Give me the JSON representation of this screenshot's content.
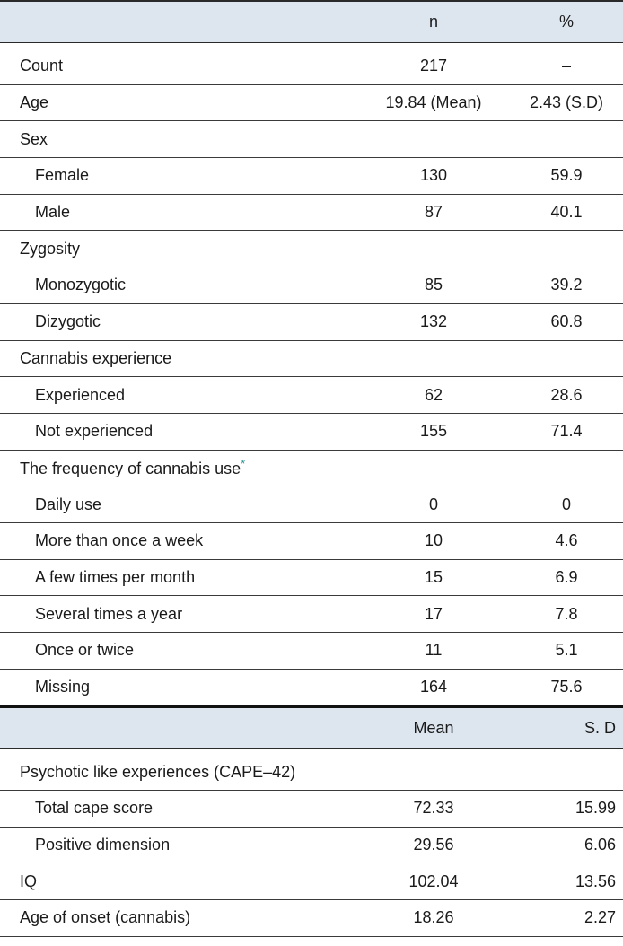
{
  "header1": {
    "col_n": "n",
    "col_pct": "%"
  },
  "rows1": [
    {
      "label": "Count",
      "n": "217",
      "pct": "–",
      "indent": false
    },
    {
      "label": "Age",
      "n": "19.84 (Mean)",
      "pct": "2.43 (S.D)",
      "indent": false
    },
    {
      "label": "Sex",
      "n": "",
      "pct": "",
      "indent": false
    },
    {
      "label": "Female",
      "n": "130",
      "pct": "59.9",
      "indent": true
    },
    {
      "label": "Male",
      "n": "87",
      "pct": "40.1",
      "indent": true
    },
    {
      "label": "Zygosity",
      "n": "",
      "pct": "",
      "indent": false
    },
    {
      "label": "Monozygotic",
      "n": "85",
      "pct": "39.2",
      "indent": true
    },
    {
      "label": "Dizygotic",
      "n": "132",
      "pct": "60.8",
      "indent": true
    },
    {
      "label": "Cannabis experience",
      "n": "",
      "pct": "",
      "indent": false
    },
    {
      "label": "Experienced",
      "n": "62",
      "pct": "28.6",
      "indent": true
    },
    {
      "label": "Not experienced",
      "n": "155",
      "pct": "71.4",
      "indent": true
    },
    {
      "label": "The frequency of cannabis use",
      "n": "",
      "pct": "",
      "indent": false,
      "footnote": "*"
    },
    {
      "label": "Daily use",
      "n": "0",
      "pct": "0",
      "indent": true
    },
    {
      "label": "More than once a week",
      "n": "10",
      "pct": "4.6",
      "indent": true
    },
    {
      "label": "A few times per month",
      "n": "15",
      "pct": "6.9",
      "indent": true
    },
    {
      "label": "Several times a year",
      "n": "17",
      "pct": "7.8",
      "indent": true
    },
    {
      "label": "Once or twice",
      "n": "11",
      "pct": "5.1",
      "indent": true
    },
    {
      "label": "Missing",
      "n": "164",
      "pct": "75.6",
      "indent": true
    }
  ],
  "header2": {
    "col_mean": "Mean",
    "col_sd": "S. D"
  },
  "rows2": [
    {
      "label": "Psychotic like experiences (CAPE–42)",
      "mean": "",
      "sd": "",
      "indent": false
    },
    {
      "label": "Total cape score",
      "mean": "72.33",
      "sd": "15.99",
      "indent": true
    },
    {
      "label": "Positive dimension",
      "mean": "29.56",
      "sd": "6.06",
      "indent": true
    },
    {
      "label": "IQ",
      "mean": "102.04",
      "sd": "13.56",
      "indent": false
    },
    {
      "label": "Age of onset (cannabis)",
      "mean": "18.26",
      "sd": "2.27",
      "indent": false
    }
  ]
}
